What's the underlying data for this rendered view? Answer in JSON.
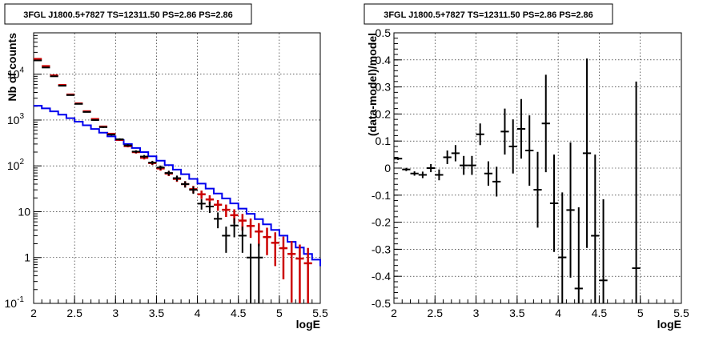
{
  "chart_data": [
    {
      "type": "step-histogram-with-errorbars",
      "title": "3FGL J1800.5+7827 TS=12311.50 PS=2.86 PS=2.86",
      "xlabel": "logE",
      "ylabel": "Nb of counts",
      "xlim": [
        2,
        5.5
      ],
      "ylim": [
        0.1,
        80000
      ],
      "yscale": "log",
      "grid": true,
      "x_ticks": [
        "2",
        "2.5",
        "3",
        "3.5",
        "4",
        "4.5",
        "5",
        "5.5"
      ],
      "y_ticks": [
        {
          "value": 0.1,
          "label": "10",
          "sup": "-1"
        },
        {
          "value": 1,
          "label": "1",
          "sup": ""
        },
        {
          "value": 10,
          "label": "10",
          "sup": ""
        },
        {
          "value": 100,
          "label": "10",
          "sup": "2"
        },
        {
          "value": 1000,
          "label": "10",
          "sup": "3"
        },
        {
          "value": 10000,
          "label": "10",
          "sup": "4"
        }
      ],
      "bin_edges": [
        2.0,
        2.1,
        2.2,
        2.3,
        2.4,
        2.5,
        2.6,
        2.7,
        2.8,
        2.9,
        3.0,
        3.1,
        3.2,
        3.3,
        3.4,
        3.5,
        3.6,
        3.7,
        3.8,
        3.9,
        4.0,
        4.1,
        4.2,
        4.3,
        4.4,
        4.5,
        4.6,
        4.7,
        4.8,
        4.9,
        5.0,
        5.1,
        5.2,
        5.3,
        5.4,
        5.5
      ],
      "series": [
        {
          "color": "#0000ee",
          "kind": "step",
          "values": [
            2050,
            1800,
            1550,
            1310,
            1100,
            920,
            770,
            640,
            530,
            440,
            365,
            300,
            245,
            200,
            162,
            130,
            104,
            83,
            66,
            52,
            41,
            32,
            25,
            19.5,
            15.2,
            11.7,
            9.0,
            6.9,
            5.3,
            4.0,
            3.0,
            2.2,
            1.65,
            1.2,
            0.9,
            0.65
          ]
        },
        {
          "color": "#cc0000",
          "kind": "model-counts-with-errors",
          "values": [
            21500,
            15000,
            9400,
            5800,
            3600,
            2300,
            1550,
            1050,
            720,
            500,
            370,
            270,
            200,
            150,
            115,
            88,
            68,
            52,
            40,
            31,
            24,
            18.5,
            14.2,
            11,
            8.4,
            6.4,
            4.9,
            3.7,
            2.8,
            2.1,
            1.6,
            1.2,
            0.95,
            0.75
          ]
        },
        {
          "color": "#000000",
          "kind": "data-counts-with-errors",
          "x": [
            2.05,
            2.15,
            2.25,
            2.35,
            2.45,
            2.55,
            2.65,
            2.75,
            2.85,
            2.95,
            3.05,
            3.15,
            3.25,
            3.35,
            3.45,
            3.55,
            3.65,
            3.75,
            3.85,
            3.95,
            4.05,
            4.15,
            4.25,
            4.35,
            4.45,
            4.55,
            4.65,
            4.75
          ],
          "values": [
            20000,
            14000,
            9000,
            5600,
            3500,
            2250,
            1500,
            1000,
            700,
            480,
            380,
            280,
            205,
            160,
            118,
            92,
            70,
            54,
            40,
            30,
            15,
            13,
            7,
            3,
            5,
            3,
            1,
            1
          ]
        }
      ]
    },
    {
      "type": "scatter-with-errorbars",
      "title": "3FGL J1800.5+7827 TS=12311.50 PS=2.86 PS=2.86",
      "xlabel": "logE",
      "ylabel": "(data-model)/model",
      "xlim": [
        2,
        5.5
      ],
      "ylim": [
        -0.5,
        0.5
      ],
      "grid": true,
      "x_ticks": [
        "2",
        "2.5",
        "3",
        "3.5",
        "4",
        "4.5",
        "5",
        "5.5"
      ],
      "y_ticks": [
        "-0.5",
        "-0.4",
        "-0.3",
        "-0.2",
        "-0.1",
        "0",
        "0.1",
        "0.2",
        "0.3",
        "0.4",
        "0.5"
      ],
      "points": [
        {
          "x": 2.05,
          "y": 0.035,
          "err": 0.005
        },
        {
          "x": 2.15,
          "y": -0.005,
          "err": 0.006
        },
        {
          "x": 2.25,
          "y": -0.02,
          "err": 0.008
        },
        {
          "x": 2.35,
          "y": -0.025,
          "err": 0.012
        },
        {
          "x": 2.45,
          "y": 0.0,
          "err": 0.015
        },
        {
          "x": 2.55,
          "y": -0.025,
          "err": 0.02
        },
        {
          "x": 2.65,
          "y": 0.04,
          "err": 0.025
        },
        {
          "x": 2.75,
          "y": 0.055,
          "err": 0.03
        },
        {
          "x": 2.85,
          "y": 0.01,
          "err": 0.035
        },
        {
          "x": 2.95,
          "y": 0.01,
          "err": 0.035
        },
        {
          "x": 3.05,
          "y": 0.125,
          "err": 0.04
        },
        {
          "x": 3.15,
          "y": -0.02,
          "err": 0.045
        },
        {
          "x": 3.25,
          "y": -0.05,
          "err": 0.055
        },
        {
          "x": 3.35,
          "y": 0.135,
          "err": 0.085
        },
        {
          "x": 3.45,
          "y": 0.08,
          "err": 0.1
        },
        {
          "x": 3.55,
          "y": 0.145,
          "err": 0.11
        },
        {
          "x": 3.65,
          "y": 0.065,
          "err": 0.13
        },
        {
          "x": 3.75,
          "y": -0.08,
          "err": 0.14
        },
        {
          "x": 3.85,
          "y": 0.165,
          "err": 0.18
        },
        {
          "x": 3.95,
          "y": -0.13,
          "err": 0.18
        },
        {
          "x": 4.05,
          "y": -0.33,
          "err": 0.24
        },
        {
          "x": 4.15,
          "y": -0.155,
          "err": 0.25
        },
        {
          "x": 4.25,
          "y": -0.445,
          "err": 0.3
        },
        {
          "x": 4.35,
          "y": 0.055,
          "err": 0.35
        },
        {
          "x": 4.45,
          "y": -0.25,
          "err": 0.3
        },
        {
          "x": 4.55,
          "y": -0.415,
          "err": 0.3
        },
        {
          "x": 4.95,
          "y": -0.37,
          "err": 0.69
        }
      ]
    }
  ]
}
